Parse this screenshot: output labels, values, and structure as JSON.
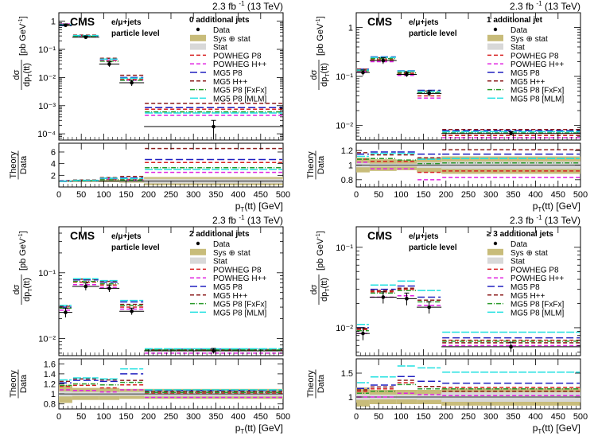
{
  "figure": {
    "lumi_label": "2.3 fb",
    "lumi_sup": "-1",
    "energy_label": "(13 TeV)",
    "experiment": "CMS",
    "channel": "e/μ+jets",
    "level": "particle level",
    "ylabel_top": "dσ",
    "ylabel_bottom": "dp",
    "ylabel_sub": "T",
    "ylabel_arg": "(tt)",
    "ylabel_unit": "[pb GeV",
    "ylabel_unit_sup": "-1",
    "ylabel_unit_close": "]",
    "ratio_label_top": "Theory",
    "ratio_label_bottom": "Data",
    "xlabel_main": "p",
    "xlabel_sub": "T",
    "xlabel_arg": "(tt) [GeV]",
    "bins": [
      0,
      30,
      90,
      135,
      190,
      500
    ],
    "xticks": [
      0,
      50,
      100,
      150,
      200,
      250,
      300,
      350,
      400,
      450,
      500
    ]
  },
  "legend": [
    {
      "label": "Data",
      "kind": "marker",
      "color": "#000000"
    },
    {
      "label": "Sys ⊕ stat",
      "kind": "box",
      "color": "#c8bc7a"
    },
    {
      "label": "Stat",
      "kind": "box",
      "color": "#d8d8d8"
    },
    {
      "label": "POWHEG P8",
      "kind": "line",
      "color": "#d62020"
    },
    {
      "label": "POWHEG H++",
      "kind": "line",
      "color": "#e020e0"
    },
    {
      "label": "MG5 P8",
      "kind": "line",
      "color": "#2020c0"
    },
    {
      "label": "MG5 H++",
      "kind": "line",
      "color": "#8b1a1a"
    },
    {
      "label": "MG5 P8 [FxFx]",
      "kind": "line",
      "color": "#2a9a2a"
    },
    {
      "label": "MG5 P8 [MLM]",
      "kind": "line",
      "color": "#20e0e0"
    }
  ],
  "chart_data": [
    {
      "type": "step",
      "title": "0 additional jets",
      "ylog": true,
      "ylim": [
        6e-05,
        2
      ],
      "yticks": [
        {
          "v": 0.0001,
          "t": "10⁻⁴"
        },
        {
          "v": 0.001,
          "t": "10⁻³"
        },
        {
          "v": 0.01,
          "t": "10⁻²"
        },
        {
          "v": 0.1,
          "t": "10⁻¹"
        },
        {
          "v": 1,
          "t": "1"
        }
      ],
      "data": [
        0.72,
        0.27,
        0.03,
        0.0065,
        0.00018
      ],
      "data_err": [
        0.08,
        0.03,
        0.006,
        0.0015,
        0.00012
      ],
      "series": [
        {
          "name": "POWHEG P8",
          "values": [
            0.72,
            0.28,
            0.04,
            0.0085,
            0.00075
          ]
        },
        {
          "name": "POWHEG H++",
          "values": [
            0.8,
            0.3,
            0.042,
            0.008,
            0.00045
          ]
        },
        {
          "name": "MG5 P8",
          "values": [
            0.7,
            0.3,
            0.045,
            0.01,
            0.00085
          ]
        },
        {
          "name": "MG5 H++",
          "values": [
            0.76,
            0.32,
            0.048,
            0.012,
            0.0012
          ]
        },
        {
          "name": "MG5 P8 [FxFx]",
          "values": [
            0.74,
            0.29,
            0.038,
            0.008,
            0.0006
          ]
        },
        {
          "name": "MG5 P8 [MLM]",
          "values": [
            0.74,
            0.31,
            0.045,
            0.0095,
            0.00055
          ]
        }
      ],
      "ratio_ylim": [
        0,
        7.5
      ],
      "ratio_yticks": [
        2,
        4,
        6
      ],
      "ratio_band_total": [
        0.12,
        0.12,
        0.18,
        0.25,
        0.7
      ],
      "ratio_band_stat": [
        0.04,
        0.05,
        0.08,
        0.1,
        0.4
      ],
      "ratio_series": [
        {
          "name": "POWHEG P8",
          "values": [
            1.0,
            1.05,
            1.3,
            1.3,
            4.2
          ]
        },
        {
          "name": "POWHEG H++",
          "values": [
            1.1,
            1.1,
            1.4,
            1.2,
            2.5
          ]
        },
        {
          "name": "MG5 P8",
          "values": [
            0.95,
            1.1,
            1.5,
            1.55,
            4.7
          ]
        },
        {
          "name": "MG5 H++",
          "values": [
            1.05,
            1.2,
            1.6,
            1.8,
            6.6
          ]
        },
        {
          "name": "MG5 P8 [FxFx]",
          "values": [
            1.0,
            1.07,
            1.25,
            1.2,
            3.3
          ]
        },
        {
          "name": "MG5 P8 [MLM]",
          "values": [
            1.02,
            1.15,
            1.5,
            1.45,
            3.0
          ]
        }
      ]
    },
    {
      "type": "step",
      "title": "1 additional jet",
      "ylog": true,
      "ylim": [
        0.005,
        2
      ],
      "yticks": [
        {
          "v": 0.01,
          "t": "10⁻²"
        },
        {
          "v": 0.1,
          "t": "10⁻¹"
        },
        {
          "v": 1,
          "t": "1"
        }
      ],
      "data": [
        0.12,
        0.21,
        0.11,
        0.045,
        0.0068
      ],
      "data_err": [
        0.015,
        0.03,
        0.012,
        0.006,
        0.0006
      ],
      "series": [
        {
          "name": "POWHEG P8",
          "values": [
            0.13,
            0.22,
            0.115,
            0.04,
            0.0062
          ]
        },
        {
          "name": "POWHEG H++",
          "values": [
            0.125,
            0.2,
            0.105,
            0.036,
            0.0056
          ]
        },
        {
          "name": "MG5 P8",
          "values": [
            0.14,
            0.25,
            0.13,
            0.052,
            0.0078
          ]
        },
        {
          "name": "MG5 H++",
          "values": [
            0.14,
            0.24,
            0.125,
            0.05,
            0.0082
          ]
        },
        {
          "name": "MG5 P8 [FxFx]",
          "values": [
            0.13,
            0.23,
            0.118,
            0.046,
            0.007
          ]
        },
        {
          "name": "MG5 P8 [MLM]",
          "values": [
            0.135,
            0.245,
            0.128,
            0.049,
            0.0074
          ]
        }
      ],
      "ratio_ylim": [
        0.7,
        1.3
      ],
      "ratio_yticks": [
        0.8,
        1,
        1.2
      ],
      "ratio_band_total": [
        0.1,
        0.08,
        0.07,
        0.1,
        0.12
      ],
      "ratio_band_stat": [
        0.03,
        0.02,
        0.02,
        0.04,
        0.05
      ],
      "ratio_series": [
        {
          "name": "POWHEG P8",
          "values": [
            1.08,
            1.05,
            1.05,
            0.9,
            0.92
          ]
        },
        {
          "name": "POWHEG H++",
          "values": [
            1.04,
            0.95,
            0.95,
            0.8,
            0.83
          ]
        },
        {
          "name": "MG5 P8",
          "values": [
            1.15,
            1.18,
            1.18,
            1.15,
            1.15
          ]
        },
        {
          "name": "MG5 H++",
          "values": [
            1.17,
            1.14,
            1.14,
            1.1,
            1.21
          ]
        },
        {
          "name": "MG5 P8 [FxFx]",
          "values": [
            1.08,
            1.09,
            1.07,
            1.02,
            1.03
          ]
        },
        {
          "name": "MG5 P8 [MLM]",
          "values": [
            1.12,
            1.16,
            1.16,
            1.08,
            1.09
          ]
        }
      ]
    },
    {
      "type": "step",
      "title": "2 additional jets",
      "ylog": true,
      "ylim": [
        0.0055,
        0.5
      ],
      "yticks": [
        {
          "v": 0.01,
          "t": "10⁻²"
        },
        {
          "v": 0.1,
          "t": "10⁻¹"
        }
      ],
      "data": [
        0.025,
        0.062,
        0.058,
        0.026,
        0.0065
      ],
      "data_err": [
        0.004,
        0.008,
        0.007,
        0.003,
        0.0006
      ],
      "series": [
        {
          "name": "POWHEG P8",
          "values": [
            0.029,
            0.072,
            0.065,
            0.03,
            0.0066
          ]
        },
        {
          "name": "POWHEG H++",
          "values": [
            0.027,
            0.066,
            0.06,
            0.028,
            0.006
          ]
        },
        {
          "name": "MG5 P8",
          "values": [
            0.03,
            0.078,
            0.072,
            0.036,
            0.0069
          ]
        },
        {
          "name": "MG5 H++",
          "values": [
            0.031,
            0.08,
            0.074,
            0.033,
            0.0068
          ]
        },
        {
          "name": "MG5 P8 [FxFx]",
          "values": [
            0.029,
            0.074,
            0.068,
            0.032,
            0.0067
          ]
        },
        {
          "name": "MG5 P8 [MLM]",
          "values": [
            0.032,
            0.081,
            0.076,
            0.038,
            0.007
          ]
        }
      ],
      "ratio_ylim": [
        0.7,
        1.7
      ],
      "ratio_yticks": [
        0.8,
        1,
        1.2,
        1.4,
        1.6
      ],
      "ratio_band_total": [
        0.18,
        0.12,
        0.12,
        0.1,
        0.1
      ],
      "ratio_band_stat": [
        0.05,
        0.04,
        0.04,
        0.04,
        0.05
      ],
      "ratio_series": [
        {
          "name": "POWHEG P8",
          "values": [
            1.15,
            1.17,
            1.12,
            1.18,
            1.02
          ]
        },
        {
          "name": "POWHEG H++",
          "values": [
            1.08,
            1.07,
            1.04,
            1.08,
            0.93
          ]
        },
        {
          "name": "MG5 P8",
          "values": [
            1.22,
            1.27,
            1.25,
            1.4,
            1.07
          ]
        },
        {
          "name": "MG5 H++",
          "values": [
            1.25,
            1.3,
            1.28,
            1.27,
            1.05
          ]
        },
        {
          "name": "MG5 P8 [FxFx]",
          "values": [
            1.17,
            1.2,
            1.18,
            1.23,
            1.03
          ]
        },
        {
          "name": "MG5 P8 [MLM]",
          "values": [
            1.28,
            1.32,
            1.3,
            1.5,
            1.08
          ]
        }
      ]
    },
    {
      "type": "step",
      "title": "≥ 3 additional jets",
      "ylog": true,
      "ylim": [
        0.0045,
        0.18
      ],
      "yticks": [
        {
          "v": 0.01,
          "t": "10⁻²"
        },
        {
          "v": 0.1,
          "t": "10⁻¹"
        }
      ],
      "data": [
        0.0085,
        0.024,
        0.023,
        0.018,
        0.0058
      ],
      "data_err": [
        0.0015,
        0.004,
        0.004,
        0.003,
        0.0008
      ],
      "series": [
        {
          "name": "POWHEG P8",
          "values": [
            0.0095,
            0.028,
            0.03,
            0.022,
            0.007
          ]
        },
        {
          "name": "POWHEG H++",
          "values": [
            0.0085,
            0.024,
            0.025,
            0.019,
            0.006
          ]
        },
        {
          "name": "MG5 P8",
          "values": [
            0.01,
            0.03,
            0.033,
            0.024,
            0.0075
          ]
        },
        {
          "name": "MG5 H++",
          "values": [
            0.0098,
            0.029,
            0.031,
            0.022,
            0.0065
          ]
        },
        {
          "name": "MG5 P8 [FxFx]",
          "values": [
            0.0092,
            0.027,
            0.029,
            0.021,
            0.0068
          ]
        },
        {
          "name": "MG5 P8 [MLM]",
          "values": [
            0.011,
            0.034,
            0.038,
            0.029,
            0.0088
          ]
        }
      ],
      "ratio_ylim": [
        0.75,
        1.8
      ],
      "ratio_yticks": [
        1,
        1.5
      ],
      "ratio_band_total": [
        0.2,
        0.15,
        0.15,
        0.15,
        0.18
      ],
      "ratio_band_stat": [
        0.06,
        0.05,
        0.05,
        0.06,
        0.1
      ],
      "ratio_series": [
        {
          "name": "POWHEG P8",
          "values": [
            1.12,
            1.17,
            1.3,
            1.22,
            1.2
          ]
        },
        {
          "name": "POWHEG H++",
          "values": [
            1.0,
            1.0,
            1.08,
            1.05,
            1.03
          ]
        },
        {
          "name": "MG5 P8",
          "values": [
            1.18,
            1.25,
            1.43,
            1.33,
            1.29
          ]
        },
        {
          "name": "MG5 H++",
          "values": [
            1.15,
            1.21,
            1.35,
            1.22,
            1.12
          ]
        },
        {
          "name": "MG5 P8 [FxFx]",
          "values": [
            1.08,
            1.12,
            1.26,
            1.17,
            1.17
          ]
        },
        {
          "name": "MG5 P8 [MLM]",
          "values": [
            1.3,
            1.42,
            1.65,
            1.61,
            1.52
          ]
        }
      ]
    }
  ]
}
